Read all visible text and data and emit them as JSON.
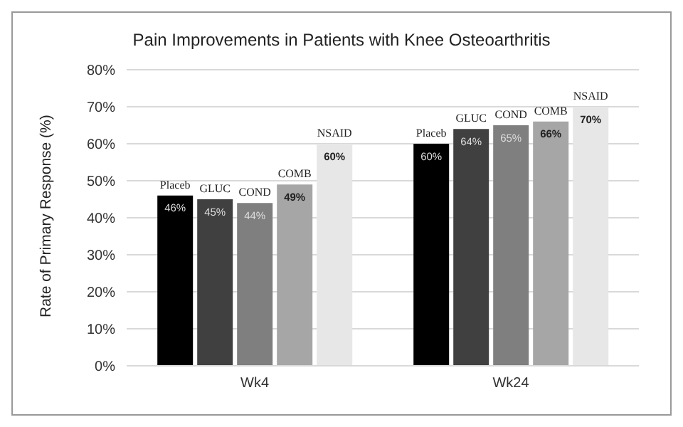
{
  "chart_data": {
    "type": "bar",
    "title": "Pain Improvements in Patients with Knee Osteoarthritis",
    "ylabel": "Rate of Primary Response (%)",
    "categories": [
      "Wk4",
      "Wk24"
    ],
    "series": [
      {
        "name": "Placeb",
        "color": "#000000",
        "values": [
          46,
          60
        ],
        "value_labels": [
          "46%",
          "60%"
        ]
      },
      {
        "name": "GLUC",
        "color": "#404040",
        "values": [
          45,
          64
        ],
        "value_labels": [
          "45%",
          "64%"
        ]
      },
      {
        "name": "COND",
        "color": "#7f7f7f",
        "values": [
          44,
          65
        ],
        "value_labels": [
          "44%",
          "65%"
        ]
      },
      {
        "name": "COMB",
        "color": "#a6a6a6",
        "values": [
          49,
          66
        ],
        "value_labels": [
          "49%",
          "66%"
        ]
      },
      {
        "name": "NSAID",
        "color": "#e7e7e7",
        "values": [
          60,
          70
        ],
        "value_labels": [
          "60%",
          "70%"
        ]
      }
    ],
    "ylim": [
      0,
      80
    ],
    "yticks": [
      {
        "value": 0,
        "label": "0%"
      },
      {
        "value": 10,
        "label": "10%"
      },
      {
        "value": 20,
        "label": "20%"
      },
      {
        "value": 30,
        "label": "30%"
      },
      {
        "value": 40,
        "label": "40%"
      },
      {
        "value": 50,
        "label": "50%"
      },
      {
        "value": 60,
        "label": "60%"
      },
      {
        "value": 70,
        "label": "70%"
      },
      {
        "value": 80,
        "label": "80%"
      }
    ],
    "grid": "y",
    "legend": false
  }
}
